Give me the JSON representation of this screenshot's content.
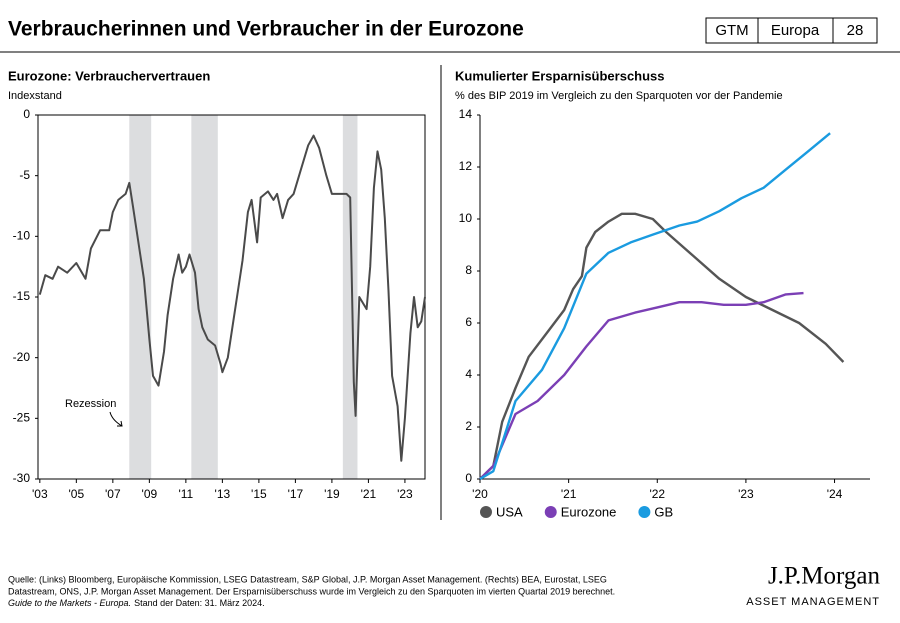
{
  "header": {
    "title": "Verbraucherinnen und Verbraucher in der Eurozone",
    "badges": [
      "GTM",
      "Europa",
      "28"
    ]
  },
  "chart_data": [
    {
      "type": "line",
      "title": "Eurozone: Verbrauchervertrauen",
      "subtitle": "Indexstand",
      "x": [
        2003.0,
        2003.3,
        2003.7,
        2004.0,
        2004.5,
        2005.0,
        2005.5,
        2005.8,
        2006.3,
        2006.8,
        2007.0,
        2007.3,
        2007.7,
        2007.9,
        2008.1,
        2008.4,
        2008.7,
        2009.0,
        2009.2,
        2009.5,
        2009.8,
        2010.0,
        2010.3,
        2010.6,
        2010.8,
        2011.0,
        2011.2,
        2011.5,
        2011.7,
        2011.9,
        2012.2,
        2012.6,
        2012.9,
        2013.0,
        2013.3,
        2013.6,
        2013.8,
        2014.1,
        2014.4,
        2014.6,
        2014.9,
        2015.1,
        2015.5,
        2015.8,
        2016.0,
        2016.3,
        2016.6,
        2016.9,
        2017.3,
        2017.7,
        2018.0,
        2018.3,
        2018.7,
        2019.0,
        2019.4,
        2019.8,
        2020.0,
        2020.2,
        2020.3,
        2020.5,
        2020.9,
        2021.1,
        2021.3,
        2021.5,
        2021.7,
        2021.9,
        2022.1,
        2022.3,
        2022.6,
        2022.8,
        2023.0,
        2023.3,
        2023.5,
        2023.7,
        2023.9,
        2024.1
      ],
      "series": [
        {
          "name": "Verbrauchervertrauen",
          "color": "#4a4a4a",
          "values": [
            -14.8,
            -13.2,
            -13.5,
            -12.5,
            -13.0,
            -12.2,
            -13.5,
            -11.0,
            -9.5,
            -9.5,
            -8.0,
            -7.0,
            -6.5,
            -5.6,
            -7.5,
            -10.5,
            -13.5,
            -18.5,
            -21.5,
            -22.3,
            -19.5,
            -16.5,
            -13.5,
            -11.5,
            -13.0,
            -12.5,
            -11.5,
            -13.0,
            -16.0,
            -17.5,
            -18.5,
            -19.0,
            -20.5,
            -21.2,
            -20.0,
            -17.0,
            -15.0,
            -12.0,
            -8.0,
            -7.0,
            -10.5,
            -6.8,
            -6.3,
            -7.0,
            -6.5,
            -8.5,
            -7.0,
            -6.5,
            -4.5,
            -2.5,
            -1.7,
            -2.7,
            -5.0,
            -6.5,
            -6.5,
            -6.5,
            -6.8,
            -22.0,
            -24.8,
            -15.0,
            -16.0,
            -12.5,
            -6.0,
            -3.0,
            -4.5,
            -8.5,
            -14.5,
            -21.5,
            -24.0,
            -28.5,
            -25.0,
            -18.0,
            -15.0,
            -17.5,
            -17.0,
            -15.0
          ]
        }
      ],
      "xlim": [
        2002.9,
        2024.1
      ],
      "ylim": [
        -30,
        0
      ],
      "xticks": [
        {
          "value": 2003,
          "label": "'03"
        },
        {
          "value": 2005,
          "label": "'05"
        },
        {
          "value": 2007,
          "label": "'07"
        },
        {
          "value": 2009,
          "label": "'09"
        },
        {
          "value": 2011,
          "label": "'11"
        },
        {
          "value": 2013,
          "label": "'13"
        },
        {
          "value": 2015,
          "label": "'15"
        },
        {
          "value": 2017,
          "label": "'17"
        },
        {
          "value": 2019,
          "label": "'19"
        },
        {
          "value": 2021,
          "label": "'21"
        },
        {
          "value": 2023,
          "label": "'23"
        }
      ],
      "yticks": [
        0,
        -5,
        -10,
        -15,
        -20,
        -25,
        -30
      ],
      "shaded_spans": [
        [
          2007.9,
          2009.1
        ],
        [
          2011.3,
          2012.75
        ],
        [
          2019.6,
          2020.4
        ]
      ],
      "shade_color": "#dcdddf",
      "annotation": "Rezession",
      "frame": true
    },
    {
      "type": "line",
      "title": "Kumulierter Ersparnisüberschuss",
      "subtitle": "% des BIP 2019 im Vergleich zu den Sparquoten vor der Pandemie",
      "series": [
        {
          "name": "USA",
          "color": "#555555",
          "x": [
            2020.0,
            2020.15,
            2020.25,
            2020.4,
            2020.55,
            2020.75,
            2020.95,
            2021.05,
            2021.15,
            2021.2,
            2021.3,
            2021.45,
            2021.6,
            2021.75,
            2021.95,
            2022.1,
            2022.4,
            2022.7,
            2023.0,
            2023.3,
            2023.6,
            2023.9,
            2024.1
          ],
          "values": [
            0,
            0.5,
            2.2,
            3.5,
            4.7,
            5.6,
            6.5,
            7.3,
            7.8,
            8.9,
            9.5,
            9.9,
            10.2,
            10.2,
            10.0,
            9.5,
            8.6,
            7.7,
            7.0,
            6.5,
            6.0,
            5.2,
            4.5
          ]
        },
        {
          "name": "Eurozone",
          "color": "#7b3fb5",
          "x": [
            2020.0,
            2020.15,
            2020.4,
            2020.65,
            2020.95,
            2021.2,
            2021.45,
            2021.75,
            2022.0,
            2022.25,
            2022.5,
            2022.75,
            2023.0,
            2023.2,
            2023.45,
            2023.65
          ],
          "values": [
            0,
            0.5,
            2.5,
            3.0,
            4.0,
            5.1,
            6.1,
            6.4,
            6.6,
            6.8,
            6.8,
            6.7,
            6.7,
            6.8,
            7.1,
            7.15
          ]
        },
        {
          "name": "GB",
          "color": "#1a9be0",
          "x": [
            2020.0,
            2020.15,
            2020.4,
            2020.7,
            2020.95,
            2021.2,
            2021.45,
            2021.7,
            2021.95,
            2022.25,
            2022.45,
            2022.7,
            2022.95,
            2023.2,
            2023.45,
            2023.7,
            2023.95
          ],
          "values": [
            0,
            0.3,
            3.0,
            4.2,
            5.8,
            7.9,
            8.7,
            9.1,
            9.4,
            9.75,
            9.9,
            10.3,
            10.8,
            11.2,
            11.9,
            12.6,
            13.3
          ]
        }
      ],
      "xlim": [
        2020,
        2024.4
      ],
      "ylim": [
        0,
        14
      ],
      "xticks": [
        {
          "value": 2020,
          "label": "'20"
        },
        {
          "value": 2021,
          "label": "'21"
        },
        {
          "value": 2022,
          "label": "'22"
        },
        {
          "value": 2023,
          "label": "'23"
        },
        {
          "value": 2024,
          "label": "'24"
        }
      ],
      "yticks": [
        0,
        2,
        4,
        6,
        8,
        10,
        12,
        14
      ],
      "frame": false
    }
  ],
  "footer": {
    "source": "Quelle: (Links) Bloomberg, Europäische Kommission, LSEG Datastream, S&P Global, J.P. Morgan Asset Management. (Rechts) BEA, Eurostat, LSEG",
    "source2": "Datastream, ONS, J.P. Morgan Asset Management. Der Ersparnisüberschuss wurde im Vergleich zu den Sparquoten im vierten Quartal 2019 berechnet.",
    "guide": "Guide to the Markets - Europa.",
    "date": "Stand der Daten: 31. März 2024.",
    "logo": "J.P.Morgan",
    "logo_sub": "ASSET MANAGEMENT"
  }
}
